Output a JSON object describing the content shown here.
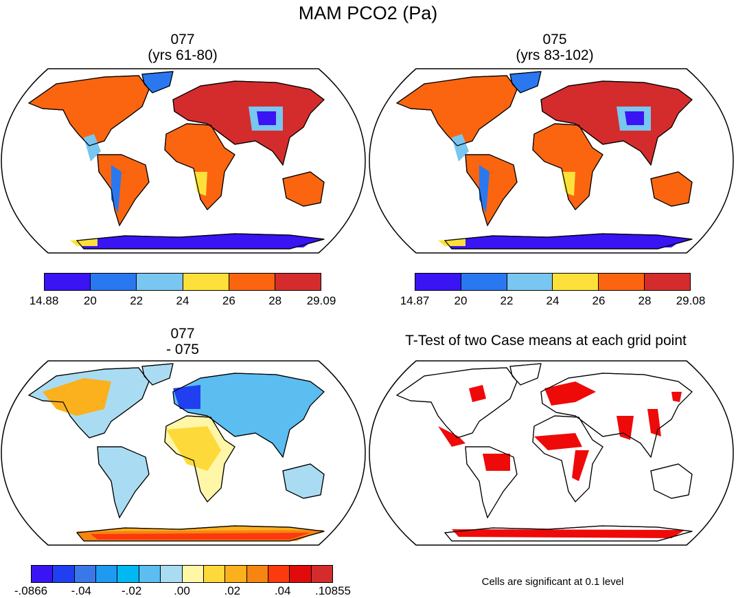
{
  "title": "MAM PCO2 (Pa)",
  "panels": [
    {
      "title_line1": "077",
      "title_line2": "(yrs 61-80)",
      "colorbar": {
        "colors": [
          "#3a14f3",
          "#2a78f0",
          "#79c6f0",
          "#fde13a",
          "#fb6510",
          "#d42c2c"
        ],
        "labels": [
          "14.88",
          "20",
          "22",
          "24",
          "26",
          "28",
          "29.09"
        ]
      }
    },
    {
      "title_line1": "075",
      "title_line2": "(yrs 83-102)",
      "colorbar": {
        "colors": [
          "#3a14f3",
          "#2a78f0",
          "#79c6f0",
          "#fde13a",
          "#fb6510",
          "#d42c2c"
        ],
        "labels": [
          "14.87",
          "20",
          "22",
          "24",
          "26",
          "28",
          "29.08"
        ]
      }
    },
    {
      "title_line1": "077",
      "title_line2": "- 075",
      "colorbar": {
        "colors": [
          "#3a14f3",
          "#1f3ff0",
          "#3a78ea",
          "#1e9af0",
          "#00b8f2",
          "#5bbdf0",
          "#a9dcf2",
          "#fff6a8",
          "#fdd93a",
          "#fbb01d",
          "#f78511",
          "#fb3a0e",
          "#e10b0b",
          "#d42c2c"
        ],
        "labels": [
          "-.0866",
          "-.04",
          "-.02",
          ".00",
          ".02",
          ".04",
          ".10855"
        ]
      }
    },
    {
      "title_line1": "T-Test of two Case means at each grid point",
      "note": "Cells are significant at 0.1 level",
      "sig_color": "#ef0a0a"
    }
  ]
}
